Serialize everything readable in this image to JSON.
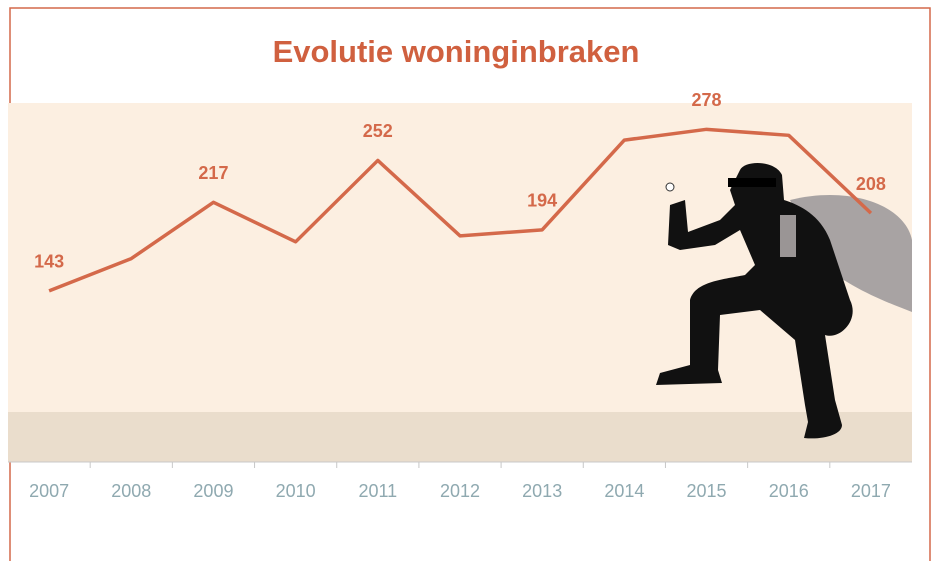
{
  "chart_data": {
    "type": "line",
    "title": "Evolutie woninginbraken",
    "categories": [
      "2007",
      "2008",
      "2009",
      "2010",
      "2011",
      "2012",
      "2013",
      "2014",
      "2015",
      "2016",
      "2017"
    ],
    "values": [
      143,
      170,
      217,
      184,
      252,
      189,
      194,
      269,
      278,
      273,
      208
    ],
    "value_labels": [
      143,
      null,
      217,
      null,
      252,
      null,
      194,
      null,
      278,
      null,
      208
    ],
    "color": "#d4694a",
    "ylim": [
      0,
      300
    ]
  }
}
